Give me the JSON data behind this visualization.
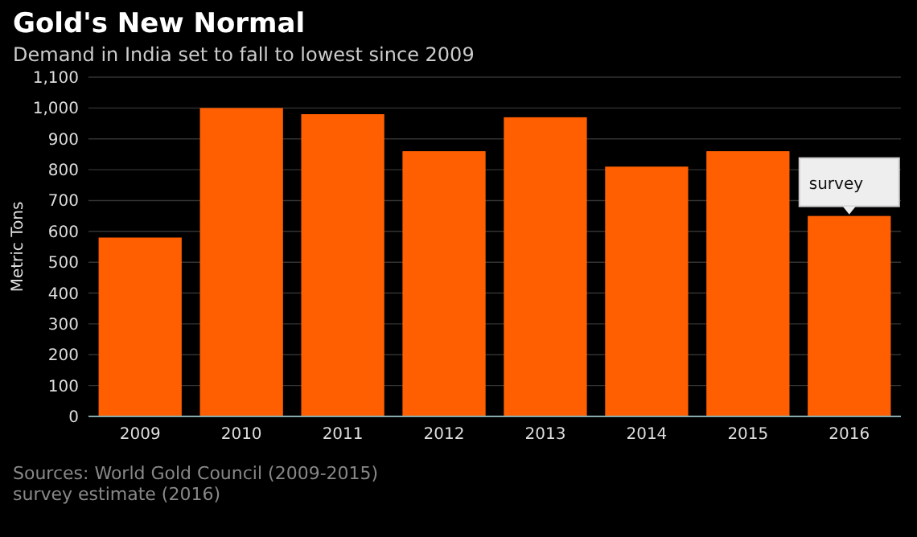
{
  "chart_data": {
    "type": "bar",
    "title": "Gold's New Normal",
    "subtitle": "Demand in India set to fall to lowest since 2009",
    "ylabel": "Metric Tons",
    "categories": [
      "2009",
      "2010",
      "2011",
      "2012",
      "2013",
      "2014",
      "2015",
      "2016"
    ],
    "values": [
      580,
      1000,
      980,
      860,
      970,
      810,
      860,
      650
    ],
    "color": "#ff5f00",
    "ylim": [
      0,
      1100
    ],
    "yticks": [
      0,
      100,
      200,
      300,
      400,
      500,
      600,
      700,
      800,
      900,
      {
        "value": 1000,
        "label": "1,000"
      },
      {
        "value": 1100,
        "label": "1,100"
      }
    ],
    "grid": "y",
    "annotations": [
      {
        "text": "survey",
        "x": "2016",
        "y": 650
      },
      "Sources: World Gold Council (2009-2015)",
      "survey estimate (2016)"
    ]
  }
}
